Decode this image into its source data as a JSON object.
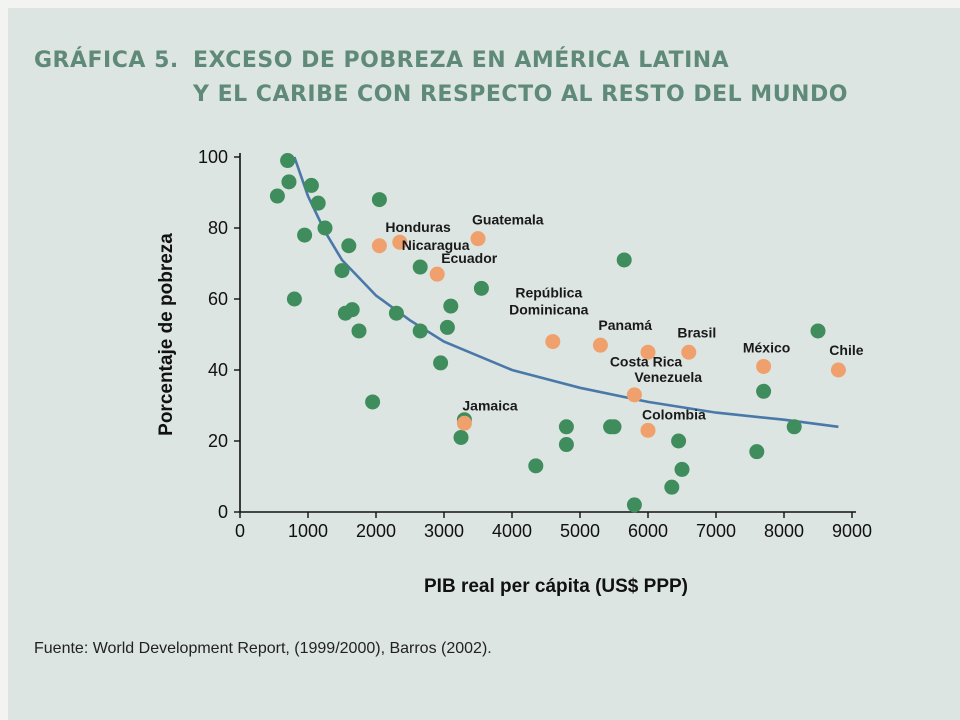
{
  "figure": {
    "label": "GRÁFICA 5.",
    "title_line1": "EXCESO DE POBREZA EN AMÉRICA LATINA",
    "title_line2": "Y EL CARIBE CON RESPECTO AL RESTO DEL MUNDO",
    "source": "Fuente: World Development Report, (1999/2000), Barros (2002).",
    "title_color": "#5f8a7a"
  },
  "chart_data": {
    "type": "scatter",
    "xlabel": "PIB real per cápita (US$ PPP)",
    "ylabel": "Porcentaje de pobreza",
    "xlim": [
      0,
      9000
    ],
    "ylim": [
      0,
      100
    ],
    "xticks": [
      0,
      1000,
      2000,
      3000,
      4000,
      5000,
      6000,
      7000,
      8000,
      9000
    ],
    "yticks": [
      0,
      20,
      40,
      60,
      80,
      100
    ],
    "grid": false,
    "colors": {
      "world": "#3f8c5c",
      "latam": "#f0a06c",
      "curve": "#4a78a8",
      "axis": "#111111"
    },
    "series": [
      {
        "points": [
          [
            550,
            89
          ],
          [
            700,
            99
          ],
          [
            720,
            93
          ],
          [
            800,
            60
          ],
          [
            950,
            78
          ],
          [
            1050,
            92
          ],
          [
            1150,
            87
          ],
          [
            1250,
            80
          ],
          [
            1500,
            68
          ],
          [
            1600,
            75
          ],
          [
            1550,
            56
          ],
          [
            1650,
            57
          ],
          [
            1750,
            51
          ],
          [
            1950,
            31
          ],
          [
            2050,
            88
          ],
          [
            2300,
            56
          ],
          [
            2650,
            69
          ],
          [
            2650,
            51
          ],
          [
            2950,
            42
          ],
          [
            3050,
            52
          ],
          [
            3100,
            58
          ],
          [
            3550,
            63
          ],
          [
            3250,
            21
          ],
          [
            3300,
            26
          ],
          [
            4350,
            13
          ],
          [
            4800,
            24
          ],
          [
            4800,
            19
          ],
          [
            5450,
            24
          ],
          [
            5500,
            24
          ],
          [
            5650,
            71
          ],
          [
            5800,
            2
          ],
          [
            6350,
            7
          ],
          [
            6450,
            20
          ],
          [
            6500,
            12
          ],
          [
            7600,
            17
          ],
          [
            7700,
            34
          ],
          [
            8150,
            24
          ],
          [
            8500,
            51
          ]
        ]
      },
      {
        "points": [
          {
            "x": 2050,
            "y": 75,
            "label": "Honduras"
          },
          {
            "x": 2350,
            "y": 76,
            "label": "Nicaragua"
          },
          {
            "x": 3500,
            "y": 77,
            "label": "Guatemala"
          },
          {
            "x": 2900,
            "y": 67,
            "label": "Ecuador"
          },
          {
            "x": 4600,
            "y": 48,
            "label": "República Dominicana"
          },
          {
            "x": 5300,
            "y": 47,
            "label": "Panamá"
          },
          {
            "x": 6000,
            "y": 45,
            "label": "Costa Rica"
          },
          {
            "x": 6600,
            "y": 45,
            "label": "Brasil"
          },
          {
            "x": 7700,
            "y": 41,
            "label": "México"
          },
          {
            "x": 8800,
            "y": 40,
            "label": "Chile"
          },
          {
            "x": 5800,
            "y": 33,
            "label": "Venezuela"
          },
          {
            "x": 3300,
            "y": 25,
            "label": "Jamaica"
          },
          {
            "x": 6000,
            "y": 23,
            "label": "Colombia"
          }
        ]
      }
    ],
    "trend_curve": [
      [
        800,
        100
      ],
      [
        1000,
        89
      ],
      [
        1250,
        79
      ],
      [
        1500,
        71
      ],
      [
        2000,
        61
      ],
      [
        2500,
        54
      ],
      [
        3000,
        48
      ],
      [
        4000,
        40
      ],
      [
        5000,
        35
      ],
      [
        6000,
        31
      ],
      [
        7000,
        28
      ],
      [
        8000,
        26
      ],
      [
        8800,
        24
      ]
    ]
  }
}
